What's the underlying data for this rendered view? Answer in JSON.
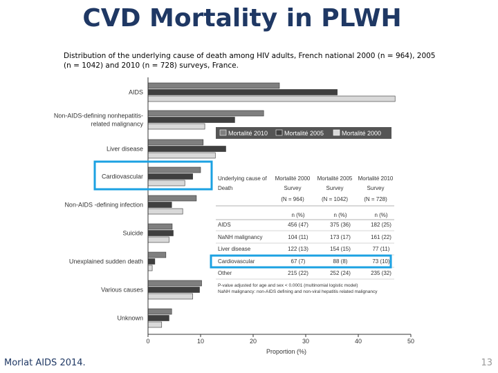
{
  "title": "CVD Mortality in PLWH",
  "subtitle": "Distribution of the underlying cause of death among HIV adults, French national 2000 (n = 964), 2005 (n = 1042) and 2010 (n = 728) surveys, France.",
  "source": "Morlat AIDS 2014.",
  "page_number": "13",
  "colors": {
    "s2010": "#7f7f7f",
    "s2005": "#3f3f3f",
    "s2000": "#d9d9d9",
    "highlight": "#1ba1e2",
    "title": "#1f3864"
  },
  "chart_data": {
    "type": "bar",
    "orientation": "horizontal",
    "categories": [
      "AIDS",
      "Non-AIDS-defining nonhepatitis-related malignancy",
      "Liver disease",
      "Cardiovascular",
      "Non-AIDS -defining infection",
      "Suicide",
      "Unexplained sudden death",
      "Various causes",
      "Unknown"
    ],
    "category_lines": [
      [
        "AIDS"
      ],
      [
        "Non-AIDS-defining nonhepatitis-",
        "related malignancy"
      ],
      [
        "Liver disease"
      ],
      [
        "Cardiovascular"
      ],
      [
        "Non-AIDS -defining infection"
      ],
      [
        "Suicide"
      ],
      [
        "Unexplained sudden death"
      ],
      [
        "Various causes"
      ],
      [
        "Unknown"
      ]
    ],
    "series": [
      {
        "name": "Mortalité 2010",
        "color": "#7f7f7f",
        "values": [
          25,
          22,
          10.5,
          10,
          9.2,
          4.6,
          3.4,
          10.2,
          4.5
        ]
      },
      {
        "name": "Mortalité 2005",
        "color": "#3f3f3f",
        "values": [
          36,
          16.5,
          14.8,
          8.5,
          4.5,
          4.8,
          1.3,
          9.8,
          4.0
        ]
      },
      {
        "name": "Mortalité 2000",
        "color": "#d9d9d9",
        "values": [
          47,
          10.8,
          12.8,
          7.0,
          6.6,
          4.0,
          0.8,
          8.5,
          2.6
        ]
      }
    ],
    "xlabel": "Proportion (%)",
    "xlim": [
      0,
      50
    ],
    "xticks": [
      0,
      10,
      20,
      30,
      40,
      50
    ],
    "legend_position": "top-right",
    "highlight_category": "Cardiovascular"
  },
  "inset_table": {
    "header": {
      "cause_line1": "Underlying cause of",
      "cause_line2": "Death",
      "cols": [
        {
          "line1": "Mortalité 2000",
          "line2": "Survey",
          "n": "(N = 964)"
        },
        {
          "line1": "Mortalité 2005",
          "line2": "Survey",
          "n": "(N = 1042)"
        },
        {
          "line1": "Mortalité 2010",
          "line2": "Survey",
          "n": "(N = 728)"
        }
      ],
      "subheader": "n    (%)"
    },
    "rows": [
      {
        "cause": "AIDS",
        "values": [
          "456 (47)",
          "375 (36)",
          "182 (25)"
        ]
      },
      {
        "cause": "NaNH malignancy",
        "values": [
          "104 (11)",
          "173 (17)",
          "161 (22)"
        ]
      },
      {
        "cause": "Liver disease",
        "values": [
          "122 (13)",
          "154 (15)",
          "77 (11)"
        ]
      },
      {
        "cause": "Cardiovascular",
        "values": [
          "67 (7)",
          "88 (8)",
          "73 (10)"
        ]
      },
      {
        "cause": "Other",
        "values": [
          "215 (22)",
          "252 (24)",
          "235 (32)"
        ]
      }
    ],
    "highlight_row": "Cardiovascular",
    "notes": [
      "P-value adjusted for age and sex < 0.0001 (multinomial logistic model)",
      "NaNH malignancy: non-AIDS defining and non-viral hepatitis related malignancy"
    ]
  }
}
